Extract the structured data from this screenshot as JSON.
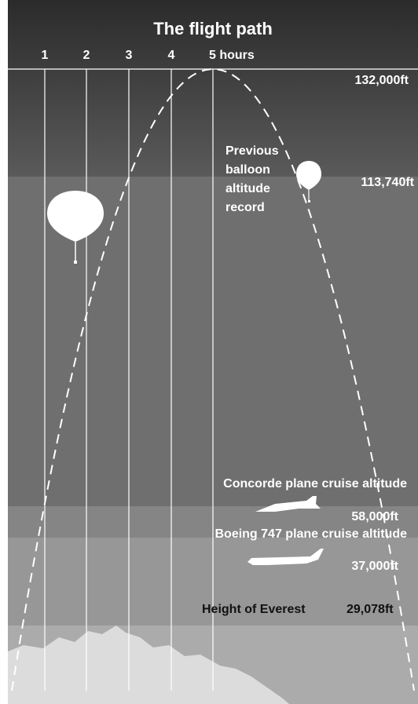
{
  "header": {
    "title": "The flight path"
  },
  "hours": [
    "1",
    "2",
    "3",
    "4",
    "5 hours"
  ],
  "record": {
    "altitude": "132,000ft"
  },
  "previous_record": {
    "lines": [
      "Previous",
      "balloon",
      "altitude",
      "record"
    ],
    "altitude": "113,740ft"
  },
  "concorde": {
    "label": "Concorde plane cruise altitude",
    "altitude": "58,000ft"
  },
  "boeing": {
    "label": "Boeing 747 plane cruise altitude",
    "altitude": "37,000ft"
  },
  "everest": {
    "label": "Height of Everest",
    "altitude": "29,078ft"
  }
}
